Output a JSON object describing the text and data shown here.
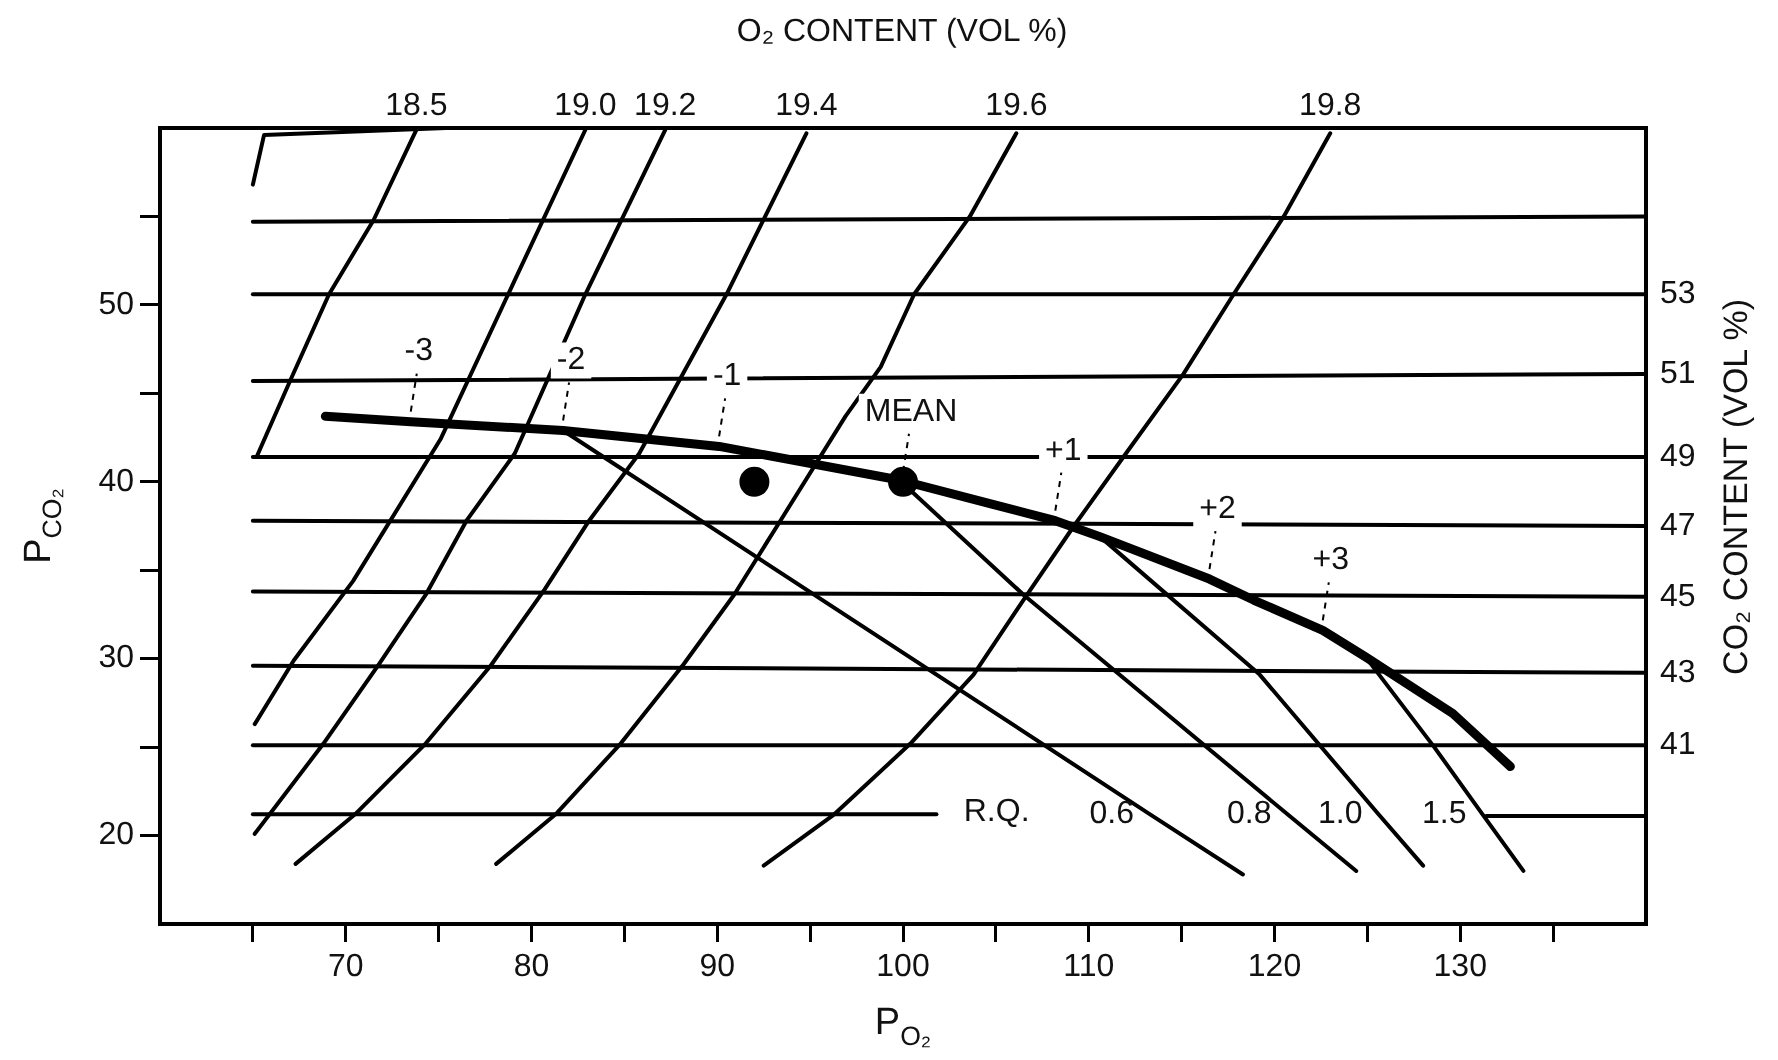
{
  "chart_data": {
    "type": "line",
    "x2label": "O₂ CONTENT (VOL %)",
    "xlabel": "P$_{O₂}$",
    "ylabel": "P$_{CO₂}$",
    "y2label": "CO₂ CONTENT (VOL %)",
    "xlim": [
      60,
      140
    ],
    "ylim": [
      15,
      60
    ],
    "xticks": [
      {
        "value": 65,
        "label": null
      },
      70,
      {
        "value": 75,
        "label": null
      },
      80,
      {
        "value": 85,
        "label": null
      },
      90,
      {
        "value": 95,
        "label": null
      },
      100,
      {
        "value": 105,
        "label": null
      },
      110,
      {
        "value": 115,
        "label": null
      },
      120,
      {
        "value": 125,
        "label": null
      },
      130,
      {
        "value": 135,
        "label": null
      }
    ],
    "yticks": [
      20,
      {
        "value": 25,
        "label": null
      },
      30,
      {
        "value": 35,
        "label": null
      },
      40,
      {
        "value": 45,
        "label": null
      },
      50,
      {
        "value": 55,
        "label": null
      }
    ],
    "grid": false,
    "marker": "none",
    "line_style": "solid",
    "annotations": [
      "R.Q.",
      {
        "text": "-3",
        "x": 73.5,
        "y": 43.4
      },
      {
        "text": "-2",
        "x": 81.7,
        "y": 42.9
      },
      {
        "text": "-1",
        "x": 90.1,
        "y": 42.0
      },
      {
        "text": "MEAN",
        "x": 100,
        "y": 40
      },
      {
        "text": "+1",
        "x": 108.2,
        "y": 37.8
      },
      {
        "text": "+2",
        "x": 116.5,
        "y": 34.5
      },
      {
        "text": "+3",
        "x": 122.6,
        "y": 31.6
      }
    ],
    "series": [
      {
        "type": "line",
        "color": "#000000",
        "x": [
          75.4,
          65.6,
          65.0
        ],
        "values": [
          60,
          59.6,
          56.8
        ]
      },
      {
        "type": "line",
        "name": "18.5",
        "color": "#000000",
        "x": [
          73.8,
          71.5,
          69.1,
          67.0,
          65.2
        ],
        "values": [
          59.9,
          54.8,
          50.6,
          45.7,
          41.4
        ]
      },
      {
        "type": "line",
        "name": "19.0",
        "color": "#000000",
        "x": [
          82.9,
          79.1,
          75.1,
          70.4,
          67.2,
          65.1
        ],
        "values": [
          59.9,
          51.4,
          42.4,
          34.4,
          29.9,
          26.3
        ]
      },
      {
        "type": "line",
        "name": "19.2",
        "color": "#000000",
        "x": [
          87.2,
          82.9,
          79.1,
          76.5,
          74.3,
          71.8,
          68.8,
          65.1
        ],
        "values": [
          59.9,
          50.6,
          41.6,
          37.8,
          33.6,
          29.7,
          25.2,
          20.1
        ]
      },
      {
        "type": "line",
        "name": "19.4",
        "color": "#000000",
        "x": [
          94.8,
          90.5,
          85.8,
          83.1,
          80.7,
          77.8,
          74.3,
          70.5,
          67.3
        ],
        "values": [
          59.7,
          50.6,
          41.6,
          37.8,
          33.9,
          29.6,
          25.2,
          21.2,
          18.4
        ]
      },
      {
        "type": "line",
        "name": "19.6",
        "color": "#000000",
        "x": [
          106.1,
          103.6,
          100.6,
          98.8,
          96.9,
          93.4,
          90.9,
          88.2,
          84.8,
          81.3,
          78.1
        ],
        "values": [
          59.7,
          55.0,
          50.6,
          46.5,
          43.7,
          37.8,
          33.6,
          29.7,
          25.2,
          21.2,
          18.4
        ]
      },
      {
        "type": "line",
        "name": "19.8",
        "color": "#000000",
        "x": [
          123.0,
          120.5,
          117.8,
          115.1,
          112.0,
          109.2,
          106.6,
          103.8,
          100.4,
          96.3,
          92.5
        ],
        "values": [
          59.7,
          55.0,
          50.6,
          46.1,
          41.6,
          37.5,
          33.5,
          29.1,
          25.2,
          21.2,
          18.3
        ]
      },
      {
        "type": "line",
        "color": "#000000",
        "x": [
          65,
          140
        ],
        "values": [
          54.7,
          55.0
        ]
      },
      {
        "type": "line",
        "name": "53",
        "color": "#000000",
        "x": [
          65,
          140
        ],
        "values": [
          50.6,
          50.6
        ]
      },
      {
        "type": "line",
        "name": "51",
        "color": "#000000",
        "x": [
          65,
          140
        ],
        "values": [
          45.7,
          46.1
        ]
      },
      {
        "type": "line",
        "name": "49",
        "color": "#000000",
        "x": [
          65,
          140
        ],
        "values": [
          41.4,
          41.4
        ]
      },
      {
        "type": "line",
        "name": "47",
        "color": "#000000",
        "x": [
          65,
          140
        ],
        "values": [
          37.8,
          37.5
        ]
      },
      {
        "type": "line",
        "name": "45",
        "color": "#000000",
        "x": [
          65,
          140
        ],
        "values": [
          33.8,
          33.5
        ]
      },
      {
        "type": "line",
        "name": "43",
        "color": "#000000",
        "x": [
          65,
          140
        ],
        "values": [
          29.6,
          29.2
        ]
      },
      {
        "type": "line",
        "name": "41",
        "color": "#000000",
        "x": [
          65,
          140
        ],
        "values": [
          25.1,
          25.1
        ]
      },
      {
        "color": "#000000",
        "x": [
          65,
          101.8
        ],
        "values": [
          21.2,
          21.2
        ]
      },
      {
        "color": "#000000",
        "x": [
          131.4,
          140
        ],
        "values": [
          21.1,
          21.1
        ]
      },
      {
        "type": "line",
        "name": "0.6",
        "color": "#000000",
        "x": [
          81.7,
          113.3,
          118.3
        ],
        "values": [
          42.9,
          21.2,
          17.8
        ]
      },
      {
        "type": "line",
        "name": "0.8",
        "color": "#000000",
        "x": [
          99.8,
          106.5,
          120.7,
          124.4
        ],
        "values": [
          40.1,
          33.6,
          21.2,
          18.0
        ]
      },
      {
        "type": "line",
        "name": "1.0",
        "color": "#000000",
        "x": [
          110.6,
          119.2,
          125.6,
          128.0
        ],
        "values": [
          36.9,
          29.1,
          21.2,
          18.3
        ]
      },
      {
        "type": "line",
        "name": "1.5",
        "color": "#000000",
        "x": [
          124.9,
          128.6,
          131.2,
          133.4
        ],
        "values": [
          30.1,
          25.0,
          21.2,
          18.0
        ]
      },
      {
        "type": "line",
        "color": "#000000",
        "x": [
          68.9,
          73.5,
          81.7,
          90.1,
          99.8,
          108.2,
          110.6,
          116.5,
          118.9,
          122.6,
          124.9,
          129.6,
          132.7
        ],
        "values": [
          43.7,
          43.4,
          42.9,
          42.0,
          40.1,
          37.8,
          36.9,
          34.5,
          33.3,
          31.6,
          30.1,
          26.9,
          23.9
        ]
      },
      {
        "type": "scatter",
        "marker": "circle",
        "color": "#000000",
        "x": [
          100
        ],
        "values": [
          40
        ]
      },
      {
        "type": "scatter",
        "marker": "circle",
        "color": "#000000",
        "x": [
          92
        ],
        "values": [
          40
        ]
      }
    ]
  }
}
